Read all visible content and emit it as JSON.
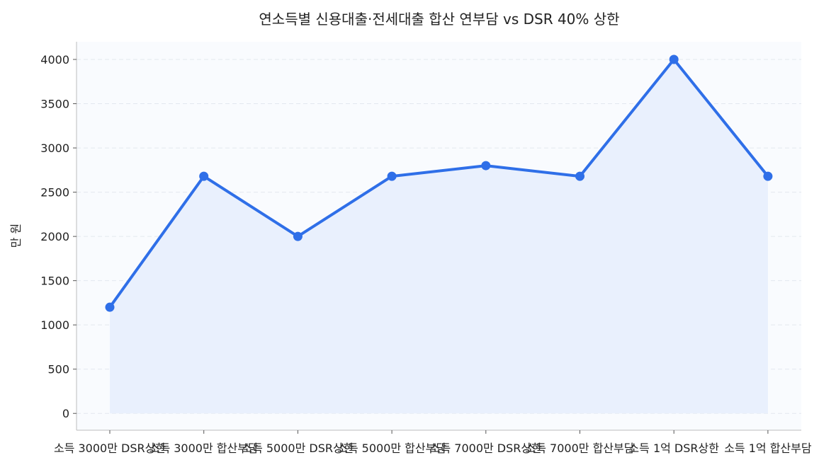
{
  "chart_data": {
    "type": "line",
    "title": "연소득별 신용대출·전세대출 합산 연부담 vs DSR 40% 상한",
    "xlabel": "",
    "ylabel": "만 원",
    "categories": [
      "소득 3000만 DSR상한",
      "소득 3000만 합산부담",
      "소득 5000만 DSR상한",
      "소득 5000만 합산부담",
      "소득 7000만 DSR상한",
      "소득 7000만 합산부담",
      "소득 1억 DSR상한",
      "소득 1억 합산부담"
    ],
    "series": [
      {
        "values": [
          1200,
          2680,
          2000,
          2680,
          2800,
          2680,
          4000,
          2680
        ]
      }
    ],
    "ylim": [
      -190,
      4200
    ],
    "yticks": [
      0,
      500,
      1000,
      1500,
      2000,
      2500,
      3000,
      3500,
      4000
    ],
    "grid": true,
    "area_fill": true,
    "colors": {
      "line": "#2f6fe8",
      "fill": "#e9f0fd",
      "plot_bg": "#f9fbfe",
      "grid": "#e3e8ef"
    }
  }
}
